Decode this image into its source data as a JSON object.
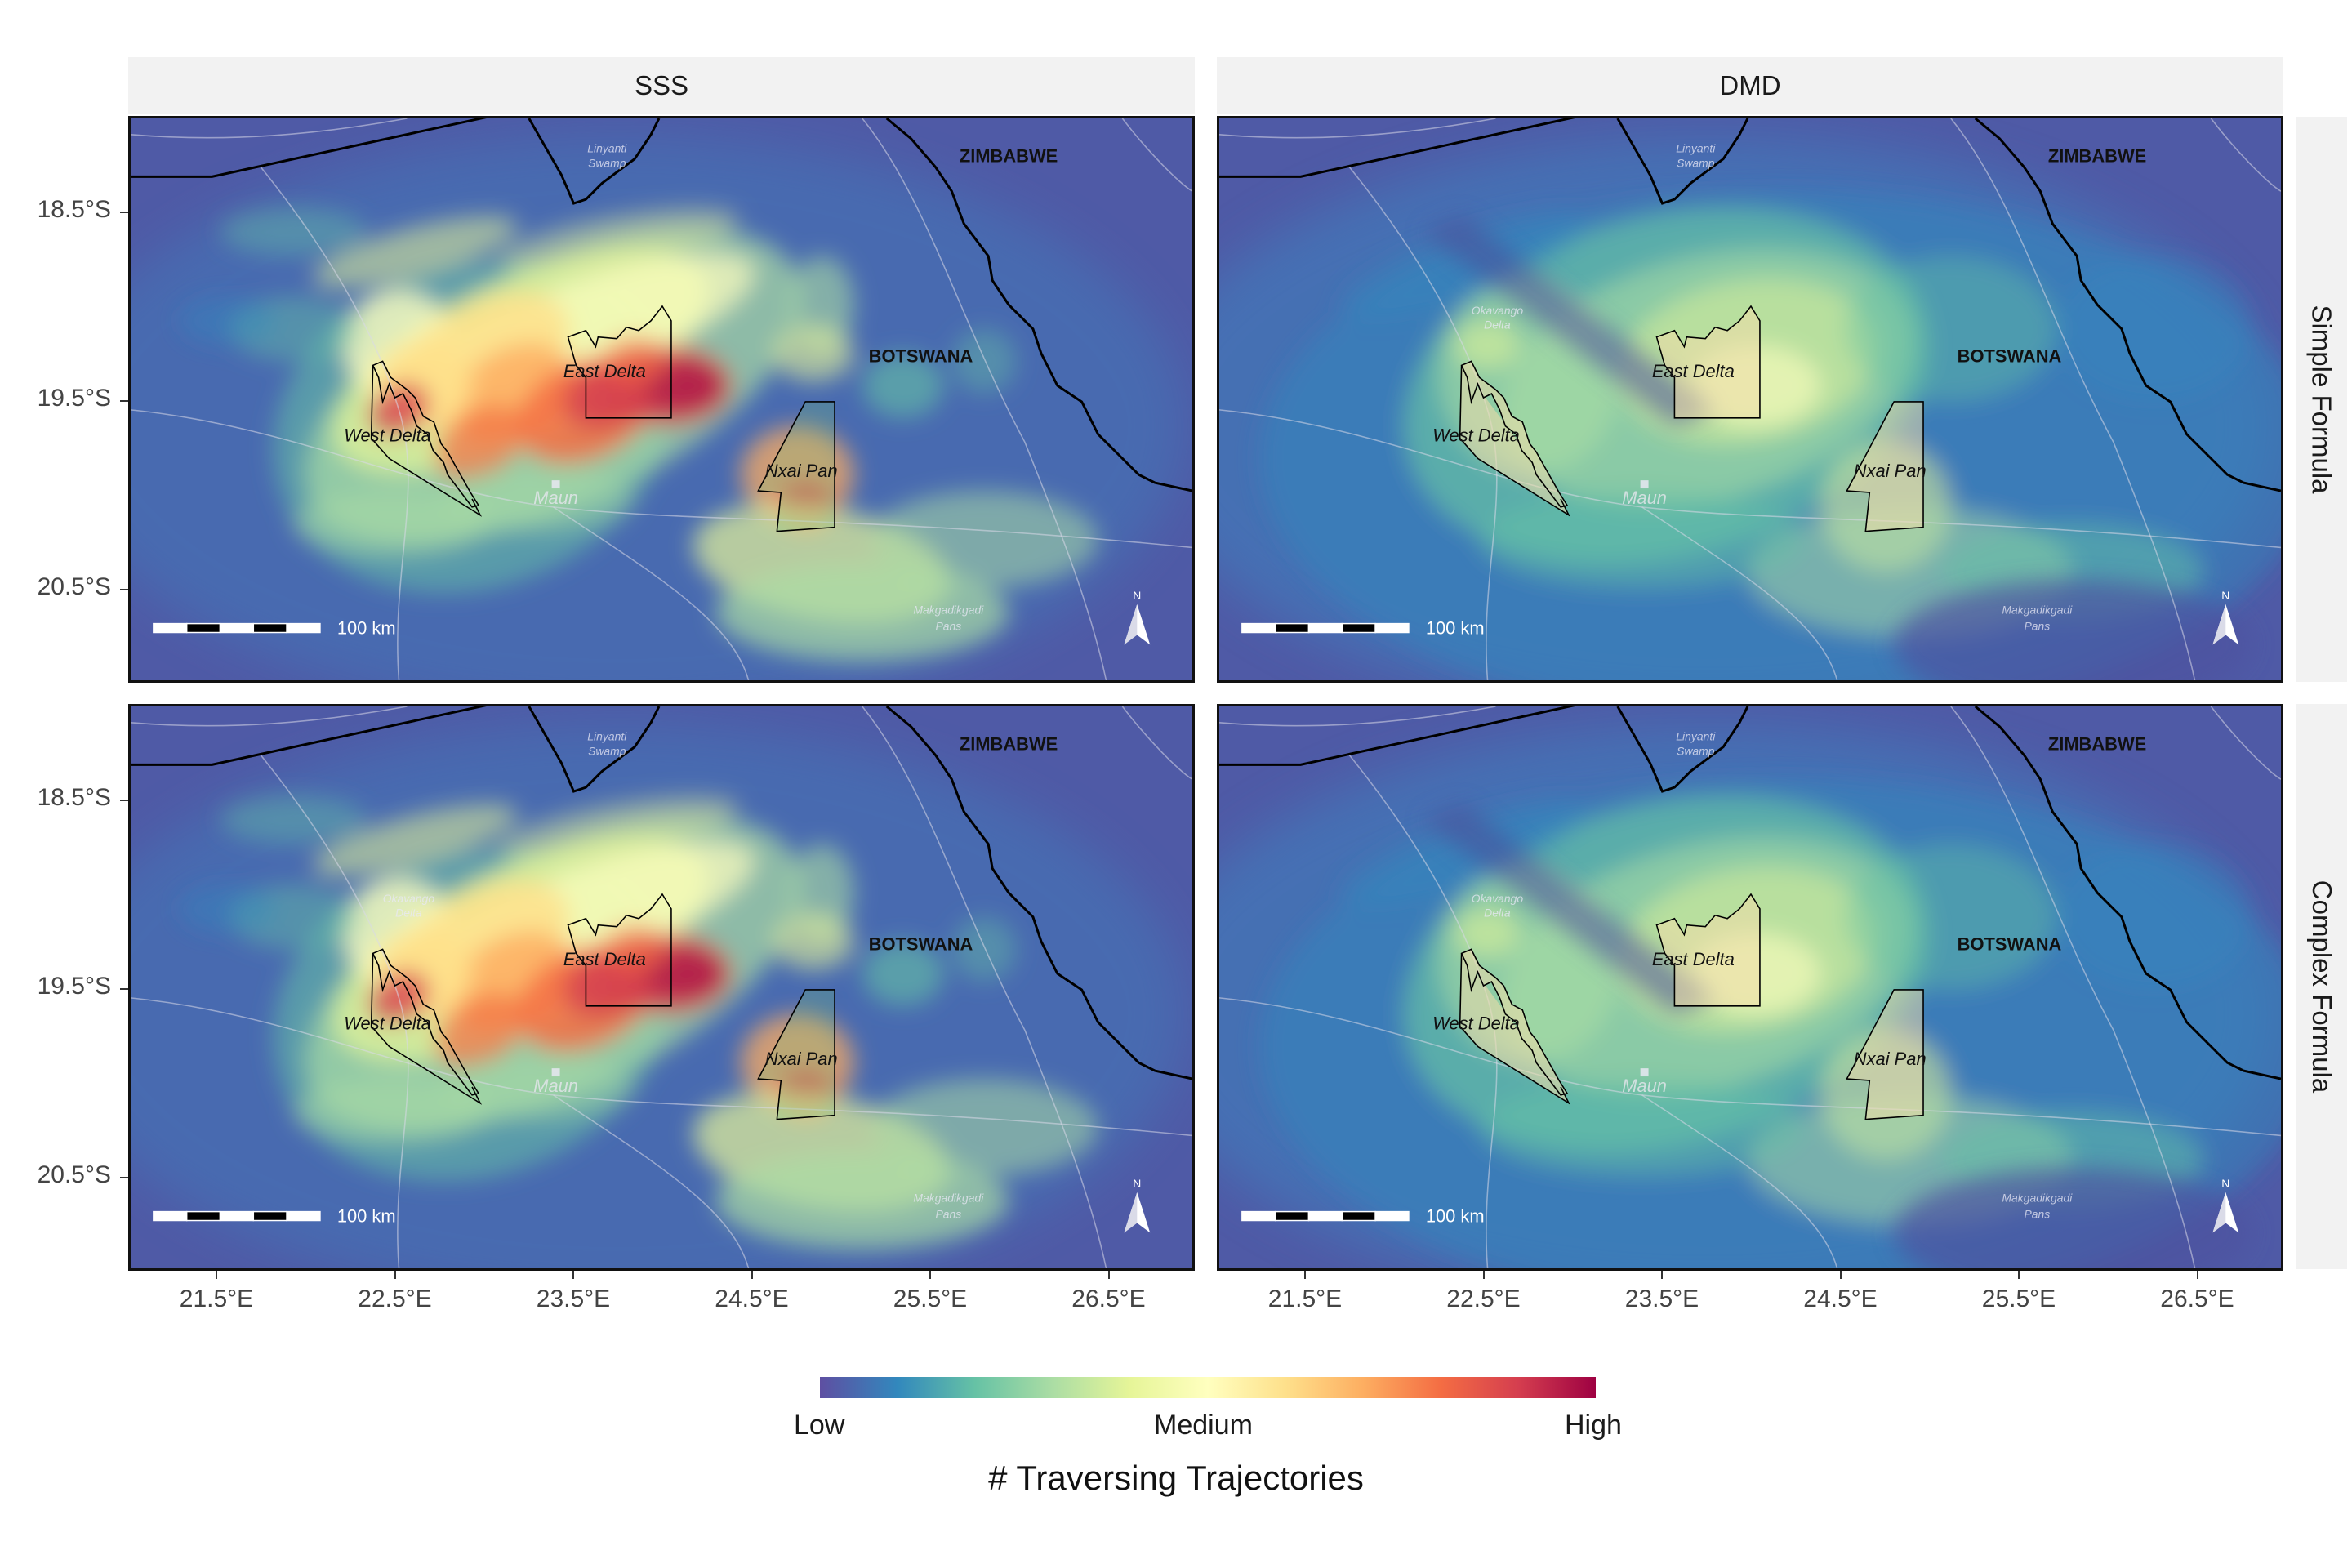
{
  "facets": {
    "columns": [
      "SSS",
      "DMD"
    ],
    "rows": [
      "Simple Formula",
      "Complex Formula"
    ]
  },
  "axes": {
    "y_ticks": [
      "18.5°S",
      "19.5°S",
      "20.5°S"
    ],
    "x_ticks": [
      "21.5°E",
      "22.5°E",
      "23.5°E",
      "24.5°E",
      "25.5°E",
      "26.5°E"
    ]
  },
  "map_labels": {
    "zimbabwe": "ZIMBABWE",
    "botswana": "BOTSWANA",
    "east_delta": "East Delta",
    "west_delta": "West Delta",
    "nxai_pan": "Nxai Pan",
    "maun": "Maun",
    "linyanti_1": "Linyanti",
    "linyanti_2": "Swamp",
    "okavango_1": "Okavango",
    "okavango_2": "Delta",
    "makgadikgadi_1": "Makgadikgadi",
    "makgadikgadi_2": "Pans",
    "scale_label": "100 km",
    "north": "N"
  },
  "legend": {
    "title": "# Traversing Trajectories",
    "low": "Low",
    "medium": "Medium",
    "high": "High",
    "colors": [
      "#5e4fa2",
      "#3288bd",
      "#66c2a5",
      "#abdda4",
      "#e6f598",
      "#ffffbf",
      "#fee08b",
      "#fdae61",
      "#f46d43",
      "#d53e4f",
      "#9e0142"
    ]
  },
  "panels": [
    {
      "column": "SSS",
      "row": "Simple Formula",
      "intensity": "high",
      "shows_okavango_label": false
    },
    {
      "column": "DMD",
      "row": "Simple Formula",
      "intensity": "moderate",
      "shows_okavango_label": true
    },
    {
      "column": "SSS",
      "row": "Complex Formula",
      "intensity": "high",
      "shows_okavango_label": true
    },
    {
      "column": "DMD",
      "row": "Complex Formula",
      "intensity": "moderate",
      "shows_okavango_label": true
    }
  ]
}
